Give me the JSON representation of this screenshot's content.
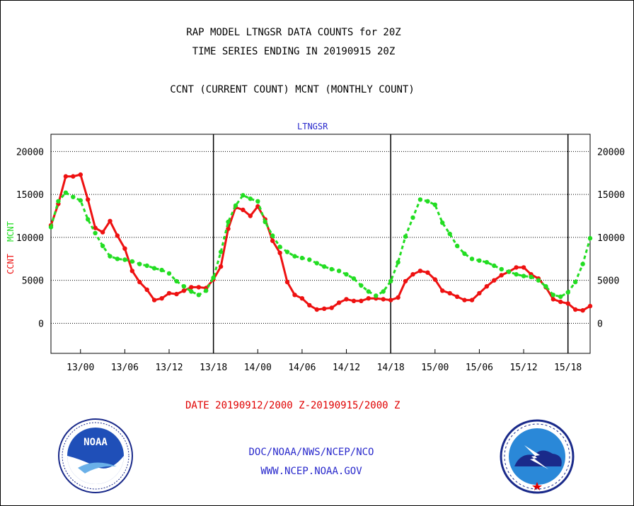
{
  "header": {
    "line1": "RAP MODEL LTNGSR DATA COUNTS for 20Z",
    "line2": "TIME SERIES ENDING IN 20190915 20Z",
    "line3": "CCNT (CURRENT COUNT) MCNT (MONTHLY COUNT)"
  },
  "footer": {
    "date_range": "DATE 20190912/2000 Z-20190915/2000 Z",
    "org": "DOC/NOAA/NWS/NCEP/NCO",
    "url": "WWW.NCEP.NOAA.GOV"
  },
  "logos": {
    "left": {
      "icon": "noaa-logo-icon",
      "text": "NOAA"
    },
    "right": {
      "icon": "nws-logo-icon"
    }
  },
  "colors": {
    "ccnt": "#ee1111",
    "mcnt": "#22dd22",
    "title_blue": "#2a2acc"
  },
  "chart_data": {
    "type": "line",
    "title": "LTNGSR",
    "ylabel_left_1": "CCNT",
    "ylabel_left_2": "MCNT",
    "ylim": [
      -3500,
      22000
    ],
    "yticks": [
      0,
      5000,
      10000,
      15000,
      20000
    ],
    "ytick_labels": [
      "0",
      "5000",
      "10000",
      "15000",
      "20000"
    ],
    "xlim": [
      20,
      92
    ],
    "xticks": [
      24,
      30,
      36,
      42,
      48,
      54,
      60,
      66,
      72,
      78,
      84,
      90
    ],
    "xtick_labels": [
      "13/00",
      "13/06",
      "13/12",
      "13/18",
      "14/00",
      "14/06",
      "14/12",
      "14/18",
      "15/00",
      "15/06",
      "15/12",
      "15/18"
    ],
    "day_dividers": [
      42,
      66,
      90
    ],
    "grid": "horizontal dotted",
    "x_hours_from": "12/00",
    "series": [
      {
        "name": "CCNT",
        "values": [
          [
            20,
            11400
          ],
          [
            21,
            13900
          ],
          [
            22,
            17100
          ],
          [
            23,
            17100
          ],
          [
            24,
            17300
          ],
          [
            25,
            14400
          ],
          [
            26,
            11100
          ],
          [
            27,
            10600
          ],
          [
            28,
            11900
          ],
          [
            29,
            10200
          ],
          [
            30,
            8700
          ],
          [
            31,
            6100
          ],
          [
            32,
            4800
          ],
          [
            33,
            3900
          ],
          [
            34,
            2700
          ],
          [
            35,
            2900
          ],
          [
            36,
            3500
          ],
          [
            37,
            3400
          ],
          [
            38,
            3800
          ],
          [
            39,
            4200
          ],
          [
            40,
            4200
          ],
          [
            41,
            4100
          ],
          [
            42,
            5100
          ],
          [
            43,
            6600
          ],
          [
            44,
            11000
          ],
          [
            45,
            13500
          ],
          [
            46,
            13200
          ],
          [
            47,
            12500
          ],
          [
            48,
            13600
          ],
          [
            49,
            12100
          ],
          [
            50,
            9600
          ],
          [
            51,
            8200
          ],
          [
            52,
            4800
          ],
          [
            53,
            3300
          ],
          [
            54,
            2900
          ],
          [
            55,
            2100
          ],
          [
            56,
            1600
          ],
          [
            57,
            1700
          ],
          [
            58,
            1800
          ],
          [
            59,
            2400
          ],
          [
            60,
            2800
          ],
          [
            61,
            2600
          ],
          [
            62,
            2600
          ],
          [
            63,
            2900
          ],
          [
            64,
            2900
          ],
          [
            65,
            2800
          ],
          [
            66,
            2700
          ],
          [
            67,
            3000
          ],
          [
            68,
            4900
          ],
          [
            69,
            5700
          ],
          [
            70,
            6100
          ],
          [
            71,
            5900
          ],
          [
            72,
            5100
          ],
          [
            73,
            3800
          ],
          [
            74,
            3500
          ],
          [
            75,
            3100
          ],
          [
            76,
            2700
          ],
          [
            77,
            2700
          ],
          [
            78,
            3500
          ],
          [
            79,
            4300
          ],
          [
            80,
            5000
          ],
          [
            81,
            5600
          ],
          [
            82,
            6000
          ],
          [
            83,
            6500
          ],
          [
            84,
            6500
          ],
          [
            85,
            5700
          ],
          [
            86,
            5200
          ],
          [
            87,
            4200
          ],
          [
            88,
            2800
          ],
          [
            89,
            2500
          ],
          [
            90,
            2300
          ],
          [
            91,
            1600
          ],
          [
            92,
            1500
          ],
          [
            93,
            2000
          ]
        ]
      },
      {
        "name": "MCNT",
        "values": [
          [
            20,
            11200
          ],
          [
            21,
            14200
          ],
          [
            22,
            15200
          ],
          [
            23,
            14700
          ],
          [
            24,
            14300
          ],
          [
            25,
            12100
          ],
          [
            26,
            10500
          ],
          [
            27,
            9000
          ],
          [
            28,
            7800
          ],
          [
            29,
            7500
          ],
          [
            30,
            7400
          ],
          [
            31,
            7200
          ],
          [
            32,
            6900
          ],
          [
            33,
            6700
          ],
          [
            34,
            6400
          ],
          [
            35,
            6200
          ],
          [
            36,
            5800
          ],
          [
            37,
            4900
          ],
          [
            38,
            4300
          ],
          [
            39,
            3700
          ],
          [
            40,
            3300
          ],
          [
            41,
            3800
          ],
          [
            42,
            5300
          ],
          [
            43,
            8300
          ],
          [
            44,
            11800
          ],
          [
            45,
            13700
          ],
          [
            46,
            14900
          ],
          [
            47,
            14500
          ],
          [
            48,
            14200
          ],
          [
            49,
            11800
          ],
          [
            50,
            10200
          ],
          [
            51,
            8900
          ],
          [
            52,
            8300
          ],
          [
            53,
            7800
          ],
          [
            54,
            7600
          ],
          [
            55,
            7400
          ],
          [
            56,
            7000
          ],
          [
            57,
            6600
          ],
          [
            58,
            6300
          ],
          [
            59,
            6100
          ],
          [
            60,
            5700
          ],
          [
            61,
            5200
          ],
          [
            62,
            4400
          ],
          [
            63,
            3700
          ],
          [
            64,
            3200
          ],
          [
            65,
            3700
          ],
          [
            66,
            4900
          ],
          [
            67,
            7100
          ],
          [
            68,
            10100
          ],
          [
            69,
            12300
          ],
          [
            70,
            14400
          ],
          [
            71,
            14200
          ],
          [
            72,
            13800
          ],
          [
            73,
            11700
          ],
          [
            74,
            10400
          ],
          [
            75,
            9000
          ],
          [
            76,
            8100
          ],
          [
            77,
            7500
          ],
          [
            78,
            7300
          ],
          [
            79,
            7100
          ],
          [
            80,
            6700
          ],
          [
            81,
            6300
          ],
          [
            82,
            6000
          ],
          [
            83,
            5700
          ],
          [
            84,
            5500
          ],
          [
            85,
            5400
          ],
          [
            86,
            5000
          ],
          [
            87,
            4300
          ],
          [
            88,
            3300
          ],
          [
            89,
            3100
          ],
          [
            90,
            3600
          ],
          [
            91,
            4800
          ],
          [
            92,
            6900
          ],
          [
            93,
            9900
          ]
        ]
      }
    ]
  }
}
